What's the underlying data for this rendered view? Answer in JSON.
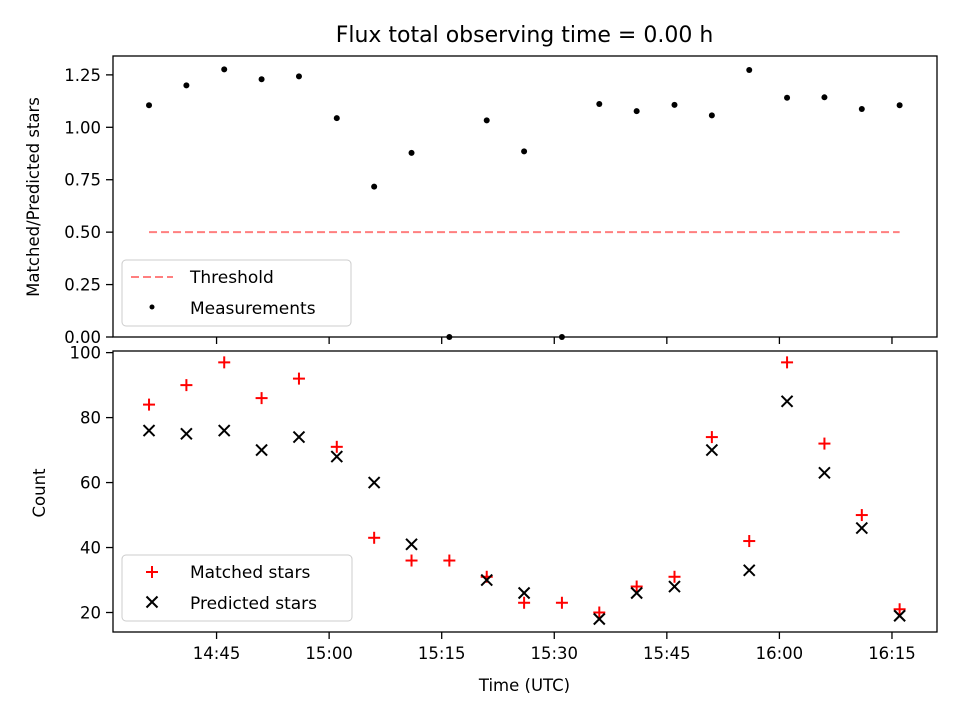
{
  "chart_data": [
    {
      "type": "scatter",
      "title": "Flux total observing time = 0.00 h",
      "ylabel": "Matched/Predicted stars",
      "xlabel": "",
      "ylim": [
        0,
        1.34
      ],
      "yticks": [
        0.0,
        0.25,
        0.5,
        0.75,
        1.0,
        1.25
      ],
      "ytick_labels": [
        "0.00",
        "0.25",
        "0.50",
        "0.75",
        "1.00",
        "1.25"
      ],
      "legend": {
        "location": "lower-left",
        "entries": [
          "Threshold",
          "Measurements"
        ]
      },
      "series": [
        {
          "name": "Threshold",
          "style": "dashed-line",
          "color": "#ff7f7f",
          "x": [
            14.6,
            16.267
          ],
          "y": [
            0.5,
            0.5
          ]
        },
        {
          "name": "Measurements",
          "style": "dot",
          "color": "#000000",
          "x": [
            14.6,
            14.683,
            14.767,
            14.85,
            14.933,
            15.017,
            15.1,
            15.183,
            15.267,
            15.35,
            15.433,
            15.517,
            15.6,
            15.683,
            15.767,
            15.85,
            15.933,
            16.017,
            16.1,
            16.183,
            16.267
          ],
          "y": [
            1.105,
            1.2,
            1.276,
            1.229,
            1.243,
            1.044,
            0.717,
            0.878,
            0.0,
            1.033,
            0.885,
            0.0,
            1.111,
            1.077,
            1.107,
            1.057,
            1.273,
            1.141,
            1.143,
            1.087,
            1.105
          ]
        }
      ]
    },
    {
      "type": "scatter",
      "title": "",
      "ylabel": "Count",
      "xlabel": "Time (UTC)",
      "ylim": [
        14,
        100.5
      ],
      "yticks": [
        20,
        40,
        60,
        80,
        100
      ],
      "ytick_labels": [
        "20",
        "40",
        "60",
        "80",
        "100"
      ],
      "xlim": [
        14.52,
        16.35
      ],
      "xticks": [
        14.75,
        15.0,
        15.25,
        15.5,
        15.75,
        16.0,
        16.25
      ],
      "xtick_labels": [
        "14:45",
        "15:00",
        "15:15",
        "15:30",
        "15:45",
        "16:00",
        "16:15"
      ],
      "legend": {
        "location": "lower-left",
        "entries": [
          "Matched stars",
          "Predicted stars"
        ]
      },
      "series": [
        {
          "name": "Matched stars",
          "marker": "plus",
          "color": "#ff0000",
          "x": [
            14.6,
            14.683,
            14.767,
            14.85,
            14.933,
            15.017,
            15.1,
            15.183,
            15.267,
            15.35,
            15.433,
            15.517,
            15.6,
            15.683,
            15.767,
            15.85,
            15.933,
            16.017,
            16.1,
            16.183,
            16.267
          ],
          "y": [
            84,
            90,
            97,
            86,
            92,
            71,
            43,
            36,
            36,
            31,
            23,
            23,
            20,
            28,
            31,
            74,
            42,
            97,
            72,
            50,
            21
          ]
        },
        {
          "name": "Predicted stars",
          "marker": "x",
          "color": "#000000",
          "x": [
            14.6,
            14.683,
            14.767,
            14.85,
            14.933,
            15.017,
            15.1,
            15.183,
            15.35,
            15.433,
            15.6,
            15.683,
            15.767,
            15.85,
            15.933,
            16.017,
            16.1,
            16.183,
            16.267
          ],
          "y": [
            76,
            75,
            76,
            70,
            74,
            68,
            60,
            41,
            30,
            26,
            18,
            26,
            28,
            70,
            33,
            85,
            63,
            46,
            19
          ]
        }
      ]
    }
  ]
}
